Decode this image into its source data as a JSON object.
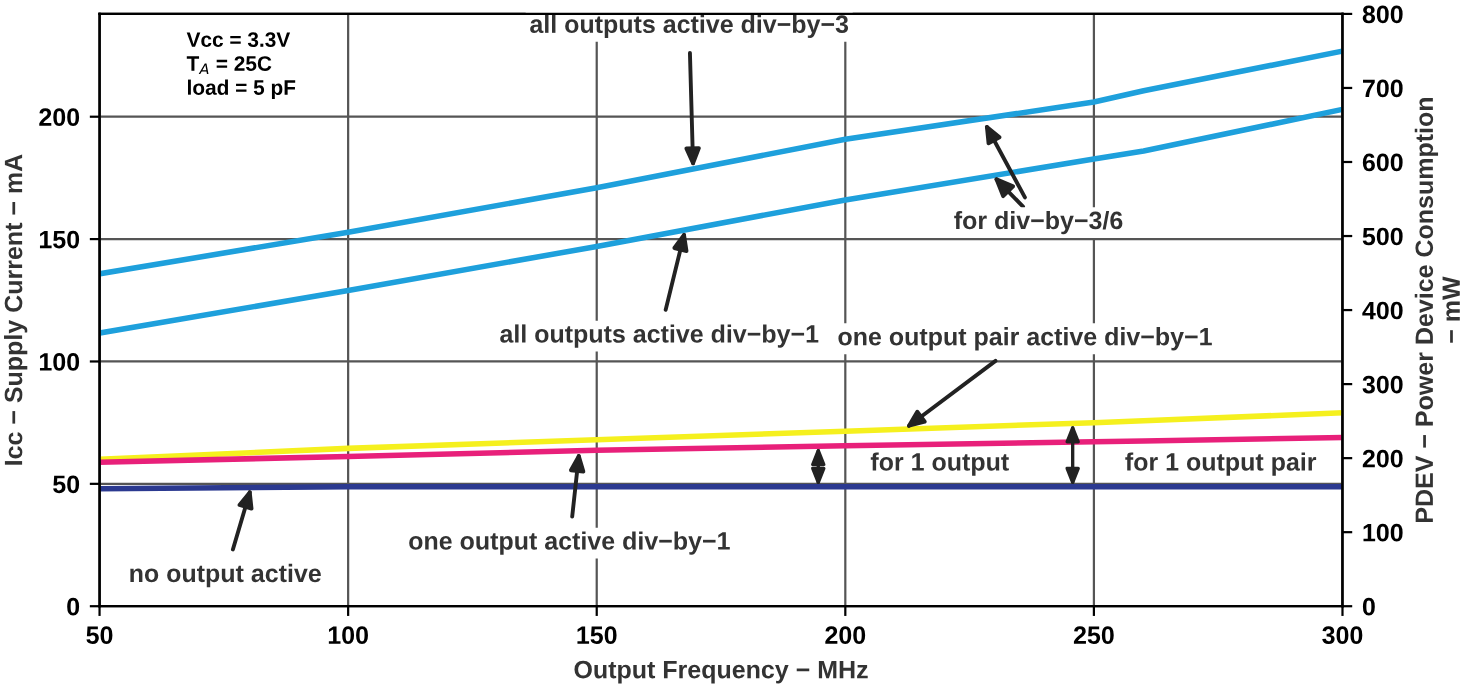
{
  "chart_data": {
    "type": "line",
    "xlabel": "Output Frequency − MHz",
    "ylabel": "Icc − Supply Current − mA",
    "y2label": "PDEV − Power Device Consumption\n− mW",
    "x": [
      50,
      100,
      150,
      200,
      250,
      260,
      300
    ],
    "series": [
      {
        "color": "#1ea0dc",
        "values": [
          135.8,
          152.8,
          171,
          190.8,
          206,
          210.6,
          226.8
        ]
      },
      {
        "color": "#1ea0dc",
        "values": [
          111.6,
          129,
          147,
          166,
          182.7,
          186,
          203
        ]
      },
      {
        "color": "#f5f01e",
        "values": [
          60,
          64.5,
          68,
          71.5,
          75,
          75.8,
          79
        ]
      },
      {
        "color": "#e8207a",
        "values": [
          58.8,
          61.2,
          63.7,
          65.6,
          67.2,
          67.5,
          68.9
        ]
      },
      {
        "color": "#2b3990",
        "values": [
          48,
          48.8,
          48.8,
          48.8,
          48.8,
          48.8,
          48.8
        ]
      }
    ],
    "xlim": [
      50,
      300
    ],
    "xticks": [
      50,
      100,
      150,
      200,
      250,
      300
    ],
    "ylim": [
      0,
      242
    ],
    "yticks": [
      0,
      50,
      100,
      150,
      200
    ],
    "y2lim": [
      0,
      800
    ],
    "y2ticks": [
      0,
      100,
      200,
      300,
      400,
      500,
      600,
      700,
      800
    ],
    "grid": true,
    "marker": "none",
    "line_style": "solid",
    "annotations": [
      "Vcc = 3.3V\nT$_{A}$ = 25C\nload = 5 pF",
      {
        "text": "all outputs active div−by−3",
        "x": 169.4,
        "y": 178.9
      },
      {
        "text": "all outputs active div−by−1",
        "x": 167.8,
        "y": 153.7
      },
      {
        "text": "for div−by−3/6",
        "x": 228,
        "y": 197.6
      },
      {
        "text": "one output pair active div−by−1",
        "x": 212,
        "y": 72.5
      },
      {
        "text": "one output active div−by−1",
        "x": 146.5,
        "y": 63.4
      },
      {
        "text": "no output active",
        "x": 80.5,
        "y": 48.5
      },
      "for 1 output",
      "for 1 output pair"
    ]
  }
}
